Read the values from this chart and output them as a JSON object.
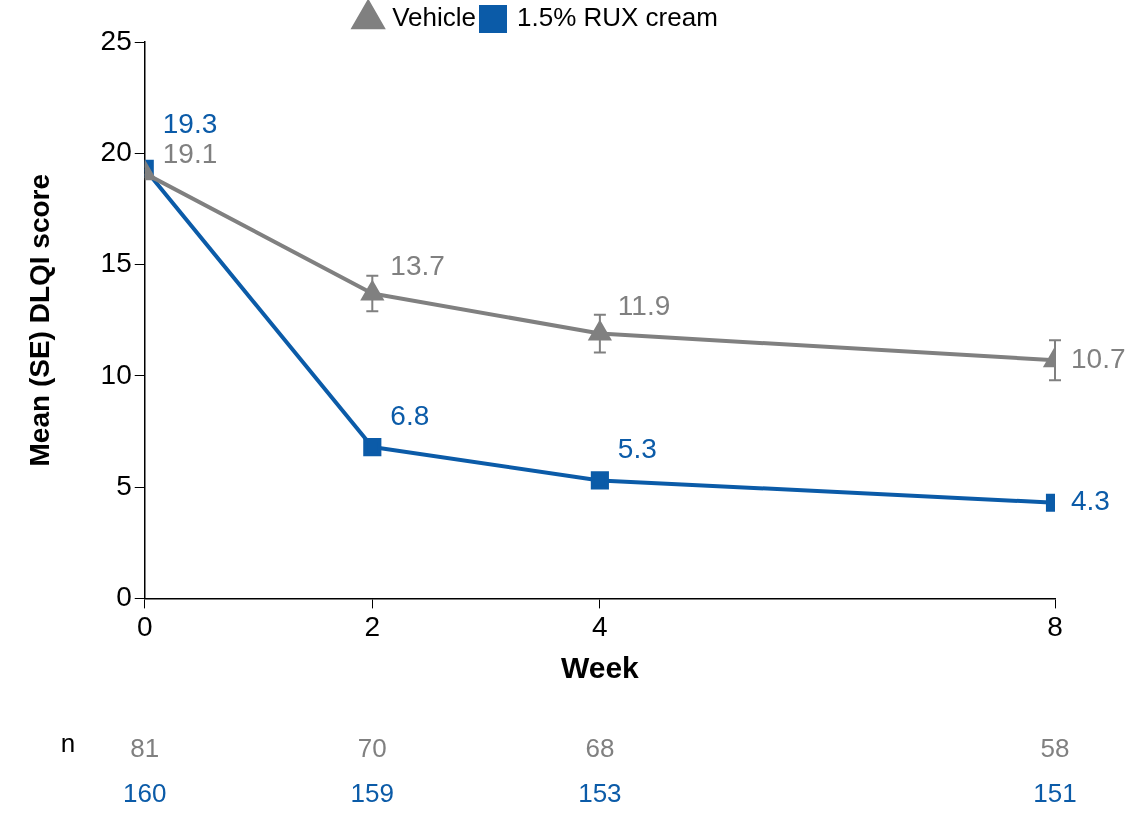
{
  "chart_data": {
    "type": "line",
    "xlabel": "Week",
    "ylabel": "Mean (SE) DLQI score",
    "x": [
      0,
      2,
      4,
      8
    ],
    "xlim": [
      0,
      8
    ],
    "xticks": [
      0,
      2,
      4,
      8
    ],
    "ylim": [
      0,
      25
    ],
    "yticks": [
      0,
      5,
      10,
      15,
      20,
      25
    ],
    "series": [
      {
        "name": "Vehicle",
        "color": "#808080",
        "marker": "triangle",
        "values": [
          19.1,
          13.7,
          11.9,
          10.7
        ],
        "errors": [
          null,
          0.8,
          0.85,
          0.9
        ],
        "value_labels": [
          "19.1",
          "13.7",
          "11.9",
          "10.7"
        ]
      },
      {
        "name": "1.5% RUX cream",
        "color": "#0b5ba8",
        "marker": "square",
        "values": [
          19.3,
          6.8,
          5.3,
          4.3
        ],
        "value_labels": [
          "19.3",
          "6.8",
          "5.3",
          "4.3"
        ]
      }
    ],
    "annotations": [
      "n",
      "81",
      "70",
      "68",
      "58",
      "160",
      "159",
      "153",
      "151"
    ],
    "grid": false,
    "legend": "top",
    "line_style": "solid"
  }
}
